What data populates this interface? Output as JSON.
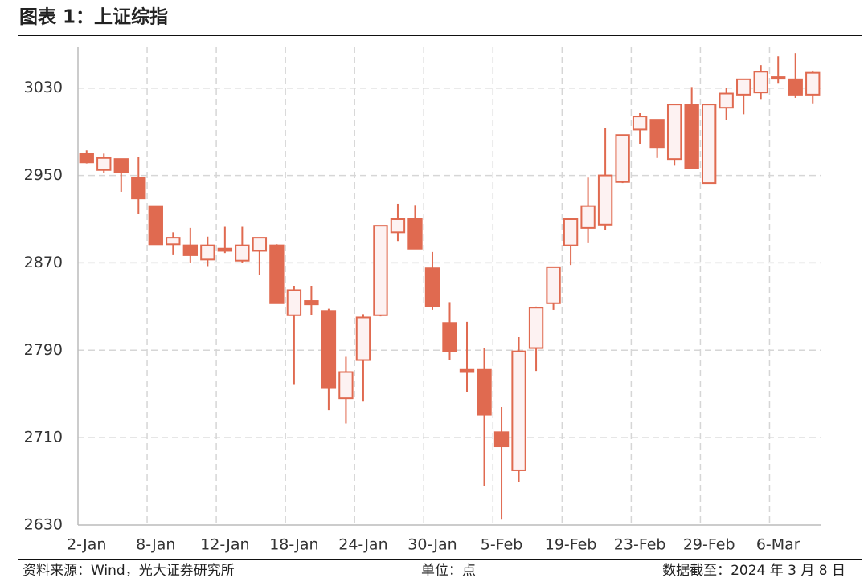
{
  "chart_data": {
    "type": "candlestick",
    "title": "图表 1：上证综指",
    "source": "资料来源：Wind，光大证券研究所",
    "unit": "单位：点",
    "note": "数据截至：2024 年 3 月 8 日",
    "categories": [
      "2-Jan",
      null,
      null,
      null,
      "8-Jan",
      null,
      null,
      null,
      "12-Jan",
      null,
      null,
      null,
      "18-Jan",
      null,
      null,
      null,
      "24-Jan",
      null,
      null,
      null,
      "30-Jan",
      null,
      null,
      null,
      "5-Feb",
      null,
      null,
      null,
      "19-Feb",
      null,
      null,
      null,
      "23-Feb",
      null,
      null,
      null,
      "29-Feb",
      null,
      null,
      null,
      "6-Mar",
      null,
      null
    ],
    "open": [
      2970,
      2955,
      2965,
      2948,
      2922,
      2887,
      2886,
      2873,
      2883,
      2872,
      2881,
      2886,
      2822,
      2835,
      2826,
      2746,
      2781,
      2822,
      2898,
      2910,
      2865,
      2815,
      2772,
      2772,
      2715,
      2680,
      2792,
      2833,
      2886,
      2902,
      2905,
      2944,
      2992,
      3001,
      2965,
      3015,
      2943,
      3012,
      3024,
      3026,
      3040,
      3038,
      3024
    ],
    "high": [
      2973,
      2970,
      2965,
      2967,
      2922,
      2898,
      2902,
      2894,
      2903,
      2903,
      2893,
      2887,
      2849,
      2849,
      2828,
      2784,
      2823,
      2904,
      2924,
      2923,
      2880,
      2834,
      2816,
      2792,
      2738,
      2802,
      2830,
      2866,
      2911,
      2948,
      2993,
      2987,
      3007,
      3001,
      3015,
      3031,
      3015,
      3030,
      3038,
      3051,
      3059,
      3062,
      3046
    ],
    "low": [
      2961,
      2952,
      2935,
      2915,
      2887,
      2877,
      2870,
      2867,
      2879,
      2870,
      2859,
      2833,
      2759,
      2822,
      2735,
      2723,
      2743,
      2821,
      2890,
      2883,
      2827,
      2781,
      2752,
      2666,
      2635,
      2669,
      2771,
      2827,
      2868,
      2888,
      2900,
      2943,
      2979,
      2966,
      2959,
      2956,
      2943,
      3001,
      3006,
      3020,
      3034,
      3021,
      3016
    ],
    "close": [
      2962,
      2966,
      2953,
      2929,
      2887,
      2893,
      2877,
      2886,
      2881,
      2886,
      2893,
      2833,
      2845,
      2832,
      2756,
      2770,
      2820,
      2904,
      2910,
      2883,
      2830,
      2789,
      2770,
      2731,
      2702,
      2789,
      2829,
      2866,
      2910,
      2922,
      2950,
      2987,
      3004,
      2976,
      3015,
      2957,
      3015,
      3025,
      3038,
      3045,
      3039,
      3024,
      3044
    ],
    "ylim": [
      2630,
      3068
    ],
    "yticks": [
      2630,
      2710,
      2790,
      2870,
      2950,
      3030
    ],
    "grid": true,
    "up_color": "#e06a50",
    "down_color": "#e06a50",
    "up_fill": "#fdf2f2"
  }
}
